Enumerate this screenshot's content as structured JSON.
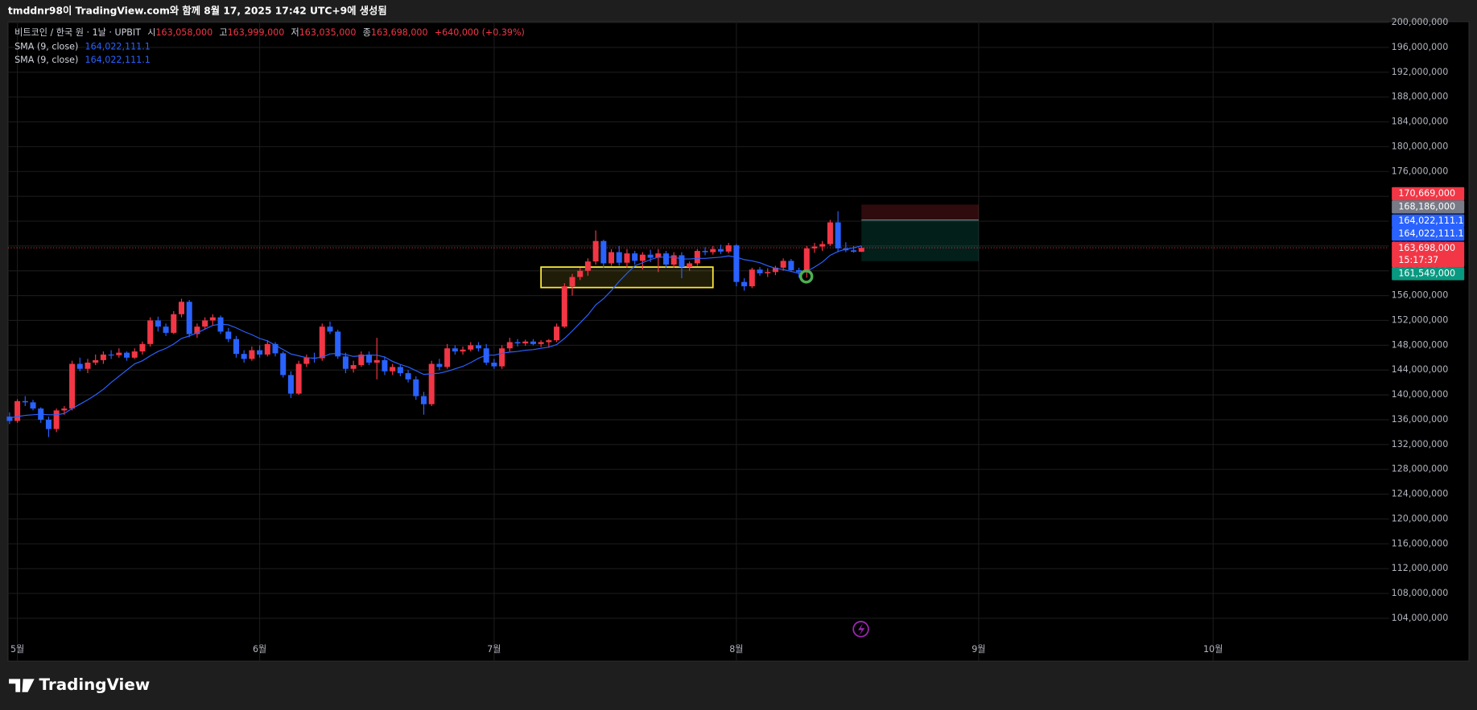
{
  "page": {
    "caption": "tmddnr98이 TradingView.com와 함께 8월 17, 2025 17:42 UTC+9에 생성됨",
    "brand": "TradingView"
  },
  "chart_data": {
    "type": "candlestick",
    "title": "비트코인 / 한국 원 · 1날 · UPBIT",
    "legend_ohlc": [
      {
        "label": "시",
        "value": "163,058,000"
      },
      {
        "label": "고",
        "value": "163,999,000"
      },
      {
        "label": "저",
        "value": "163,035,000"
      },
      {
        "label": "종",
        "value": "163,698,000"
      }
    ],
    "change": "+640,000 (+0.39%)",
    "up_color": "#f23645",
    "down_color": "#2962ff",
    "open": [
      136500000,
      135800000,
      139000000,
      138800000,
      137800000,
      136000000,
      134500000,
      137500000,
      137800000,
      145000000,
      144200000,
      145200000,
      145600000,
      146500000,
      146400000,
      146800000,
      146000000,
      147000000,
      148200000,
      152000000,
      151000000,
      150000000,
      153000000,
      155000000,
      149800000,
      151000000,
      152000000,
      152500000,
      150200000,
      149000000,
      146600000,
      145800000,
      147200000,
      146500000,
      148200000,
      146700000,
      143200000,
      140200000,
      145000000,
      146000000,
      145900000,
      151000000,
      150200000,
      146200000,
      144200000,
      144800000,
      146500000,
      145200000,
      145600000,
      143800000,
      144500000,
      143500000,
      142500000,
      139800000,
      138500000,
      145000000,
      144500000,
      147500000,
      147000000,
      147300000,
      148000000,
      147500000,
      145200000,
      144600000,
      147500000,
      148500000,
      148300000,
      148600000,
      148200000,
      148500000,
      148800000,
      151000000,
      157500000,
      159000000,
      160000000,
      161500000,
      164800000,
      161200000,
      163000000,
      161300000,
      162800000,
      161600000,
      162600000,
      162100000,
      162800000,
      161000000,
      162500000,
      160600000,
      161200000,
      163200000,
      163000000,
      163500000,
      163100000,
      164100000,
      158200000,
      157500000,
      160200000,
      159600000,
      159800000,
      160500000,
      161600000,
      160100000,
      159800000,
      163600000,
      163900000,
      164300000,
      167800000,
      163600000,
      163300000,
      163058000
    ],
    "high": [
      137200000,
      139300000,
      139800000,
      139200000,
      138000000,
      136500000,
      137800000,
      138200000,
      145500000,
      146000000,
      145800000,
      146500000,
      147000000,
      147200000,
      147500000,
      147000000,
      147500000,
      148600000,
      152500000,
      152600000,
      151500000,
      153500000,
      155500000,
      155300000,
      151500000,
      152500000,
      153000000,
      152800000,
      150800000,
      149500000,
      147200000,
      147800000,
      148000000,
      148800000,
      148500000,
      147000000,
      143800000,
      145500000,
      146500000,
      146800000,
      151500000,
      151800000,
      150500000,
      146800000,
      145500000,
      147000000,
      147000000,
      149200000,
      146200000,
      145000000,
      144800000,
      144000000,
      143000000,
      140500000,
      145500000,
      145800000,
      148200000,
      148000000,
      147800000,
      148500000,
      148500000,
      148200000,
      145800000,
      148000000,
      149200000,
      149000000,
      148900000,
      149000000,
      148800000,
      149000000,
      151500000,
      158000000,
      159500000,
      160500000,
      162000000,
      166500000,
      165000000,
      163500000,
      164000000,
      163500000,
      163200000,
      163000000,
      163400000,
      163500000,
      163200000,
      163000000,
      163000000,
      161500000,
      163500000,
      163800000,
      164000000,
      164200000,
      164500000,
      164300000,
      158800000,
      160500000,
      160600000,
      160400000,
      160800000,
      162000000,
      161900000,
      160500000,
      164000000,
      164500000,
      164800000,
      168200000,
      169600000,
      164600000,
      164000000,
      163999000
    ],
    "low": [
      135300000,
      135500000,
      138200000,
      137500000,
      135500000,
      133200000,
      134000000,
      136800000,
      137500000,
      143800000,
      143500000,
      144800000,
      145000000,
      145800000,
      146000000,
      145500000,
      145800000,
      146500000,
      147800000,
      150200000,
      149500000,
      149800000,
      152500000,
      149300000,
      149200000,
      150500000,
      151200000,
      149800000,
      148500000,
      146000000,
      145200000,
      145500000,
      146000000,
      146200000,
      146200000,
      142800000,
      139500000,
      140000000,
      144500000,
      145200000,
      145500000,
      149800000,
      145800000,
      143500000,
      143600000,
      144500000,
      144800000,
      142500000,
      143200000,
      143200000,
      143000000,
      142000000,
      139200000,
      136800000,
      138200000,
      144000000,
      144200000,
      146500000,
      146500000,
      147000000,
      147000000,
      144800000,
      144200000,
      144200000,
      147000000,
      147800000,
      147900000,
      148000000,
      147700000,
      147600000,
      148500000,
      150800000,
      156000000,
      158500000,
      159200000,
      161000000,
      160500000,
      160800000,
      160800000,
      160500000,
      161000000,
      160200000,
      161400000,
      159800000,
      160500000,
      160500000,
      158800000,
      160000000,
      160800000,
      162500000,
      162600000,
      162700000,
      162800000,
      157500000,
      156800000,
      157200000,
      159200000,
      159000000,
      159300000,
      160000000,
      159800000,
      158900000,
      158900000,
      162900000,
      163200000,
      164000000,
      163000000,
      163000000,
      162900000,
      163035000
    ],
    "close": [
      135800000,
      139000000,
      138800000,
      137800000,
      136000000,
      134500000,
      137500000,
      137800000,
      145000000,
      144200000,
      145200000,
      145600000,
      146500000,
      146400000,
      146800000,
      146000000,
      147000000,
      148200000,
      152000000,
      151000000,
      150000000,
      153000000,
      155000000,
      149800000,
      151000000,
      152000000,
      152500000,
      150200000,
      149000000,
      146600000,
      145800000,
      147200000,
      146500000,
      148200000,
      146700000,
      143200000,
      140200000,
      145000000,
      146000000,
      145900000,
      151000000,
      150200000,
      146200000,
      144200000,
      144800000,
      146500000,
      145200000,
      145600000,
      143800000,
      144500000,
      143500000,
      142500000,
      139800000,
      138500000,
      145000000,
      144500000,
      147500000,
      147000000,
      147300000,
      148000000,
      147500000,
      145200000,
      144600000,
      147500000,
      148500000,
      148300000,
      148600000,
      148200000,
      148500000,
      148800000,
      151000000,
      157500000,
      159000000,
      160000000,
      161500000,
      164800000,
      161200000,
      163000000,
      161300000,
      162800000,
      161600000,
      162600000,
      162100000,
      162800000,
      161000000,
      162500000,
      160600000,
      161200000,
      163200000,
      163000000,
      163500000,
      163100000,
      164100000,
      158200000,
      157500000,
      160200000,
      159600000,
      159800000,
      160500000,
      161600000,
      160100000,
      159800000,
      163600000,
      163900000,
      164300000,
      167800000,
      163600000,
      163300000,
      163058000,
      163698000
    ],
    "indicators": [
      {
        "name": "SMA (9, close)",
        "color": "#2962ff",
        "value_label": "164,022,111.1",
        "values": [
          136300000,
          136500000,
          136700000,
          136800000,
          136900000,
          136800000,
          136800000,
          137000000,
          137800000,
          138500000,
          139200000,
          140000000,
          140900000,
          142000000,
          143000000,
          144000000,
          145000000,
          145500000,
          146300000,
          147000000,
          147500000,
          148200000,
          149100000,
          149500000,
          150000000,
          150600000,
          151200000,
          151400000,
          151300000,
          150800000,
          150200000,
          149700000,
          149100000,
          148700000,
          148000000,
          147300000,
          146600000,
          146300000,
          146000000,
          145900000,
          146100000,
          146600000,
          146700000,
          146500000,
          146200000,
          146300000,
          146400000,
          146400000,
          146100000,
          145400000,
          144900000,
          144500000,
          143900000,
          143300000,
          143400000,
          143500000,
          143800000,
          144200000,
          144600000,
          145200000,
          145900000,
          146400000,
          146400000,
          146700000,
          146900000,
          147000000,
          147200000,
          147300000,
          147500000,
          147700000,
          148100000,
          149100000,
          150300000,
          151600000,
          152900000,
          154500000,
          155500000,
          156800000,
          158300000,
          159600000,
          160800000,
          161300000,
          161800000,
          162200000,
          162200000,
          162200000,
          161900000,
          161900000,
          162000000,
          162000000,
          162100000,
          162200000,
          162400000,
          162200000,
          161800000,
          161600000,
          161300000,
          160800000,
          160400000,
          160200000,
          159900000,
          159600000,
          159900000,
          160600000,
          161400000,
          162500000,
          163100000,
          163500000,
          163700000,
          164022111.1
        ]
      },
      {
        "name": "SMA (9, close)",
        "color": "#2962ff",
        "value_label": "164,022,111.1"
      }
    ],
    "xlim": [
      -0.2,
      176.5
    ],
    "xticks": [
      {
        "value": 1,
        "label": "5월"
      },
      {
        "value": 32,
        "label": "6월"
      },
      {
        "value": 62,
        "label": "7월"
      },
      {
        "value": 93,
        "label": "8월"
      },
      {
        "value": 124,
        "label": "9월"
      },
      {
        "value": 154,
        "label": "10월"
      }
    ],
    "ylim": [
      97100000,
      200000000
    ],
    "yticks": [
      {
        "value": 104000000,
        "label": "104,000,000"
      },
      {
        "value": 108000000,
        "label": "108,000,000"
      },
      {
        "value": 112000000,
        "label": "112,000,000"
      },
      {
        "value": 116000000,
        "label": "116,000,000"
      },
      {
        "value": 120000000,
        "label": "120,000,000"
      },
      {
        "value": 124000000,
        "label": "124,000,000"
      },
      {
        "value": 128000000,
        "label": "128,000,000"
      },
      {
        "value": 132000000,
        "label": "132,000,000"
      },
      {
        "value": 136000000,
        "label": "136,000,000"
      },
      {
        "value": 140000000,
        "label": "140,000,000"
      },
      {
        "value": 144000000,
        "label": "144,000,000"
      },
      {
        "value": 148000000,
        "label": "148,000,000"
      },
      {
        "value": 152000000,
        "label": "152,000,000"
      },
      {
        "value": 156000000,
        "label": "156,000,000"
      },
      {
        "value": 160000000,
        "label": "160,000,000"
      },
      {
        "value": 164000000,
        "label": "164,000,000"
      },
      {
        "value": 168000000,
        "label": "168,000,000"
      },
      {
        "value": 172000000,
        "label": "172,000,000"
      },
      {
        "value": 176000000,
        "label": "176,000,000"
      },
      {
        "value": 180000000,
        "label": "180,000,000"
      },
      {
        "value": 184000000,
        "label": "184,000,000"
      },
      {
        "value": 188000000,
        "label": "188,000,000"
      },
      {
        "value": 192000000,
        "label": "192,000,000"
      },
      {
        "value": 196000000,
        "label": "196,000,000"
      },
      {
        "value": 200000000,
        "label": "200,000,000"
      }
    ],
    "grid": true,
    "current_price": {
      "value": 163698000,
      "label": "163,698,000",
      "countdown": "15:17:37",
      "color": "#f23645"
    },
    "position": {
      "start": 109,
      "end": 124,
      "stop": {
        "value": 170669000,
        "label": "170,669,000",
        "color": "#f23645"
      },
      "entry": {
        "value": 168186000,
        "label": "168,186,000",
        "color": "#787b86"
      },
      "target": {
        "value": 161549000,
        "label": "161,549,000",
        "color": "#089981"
      }
    },
    "rectangle": {
      "x": [
        68,
        90
      ],
      "y": [
        157300000,
        160600000
      ],
      "color": "#ffeb3b"
    }
  }
}
